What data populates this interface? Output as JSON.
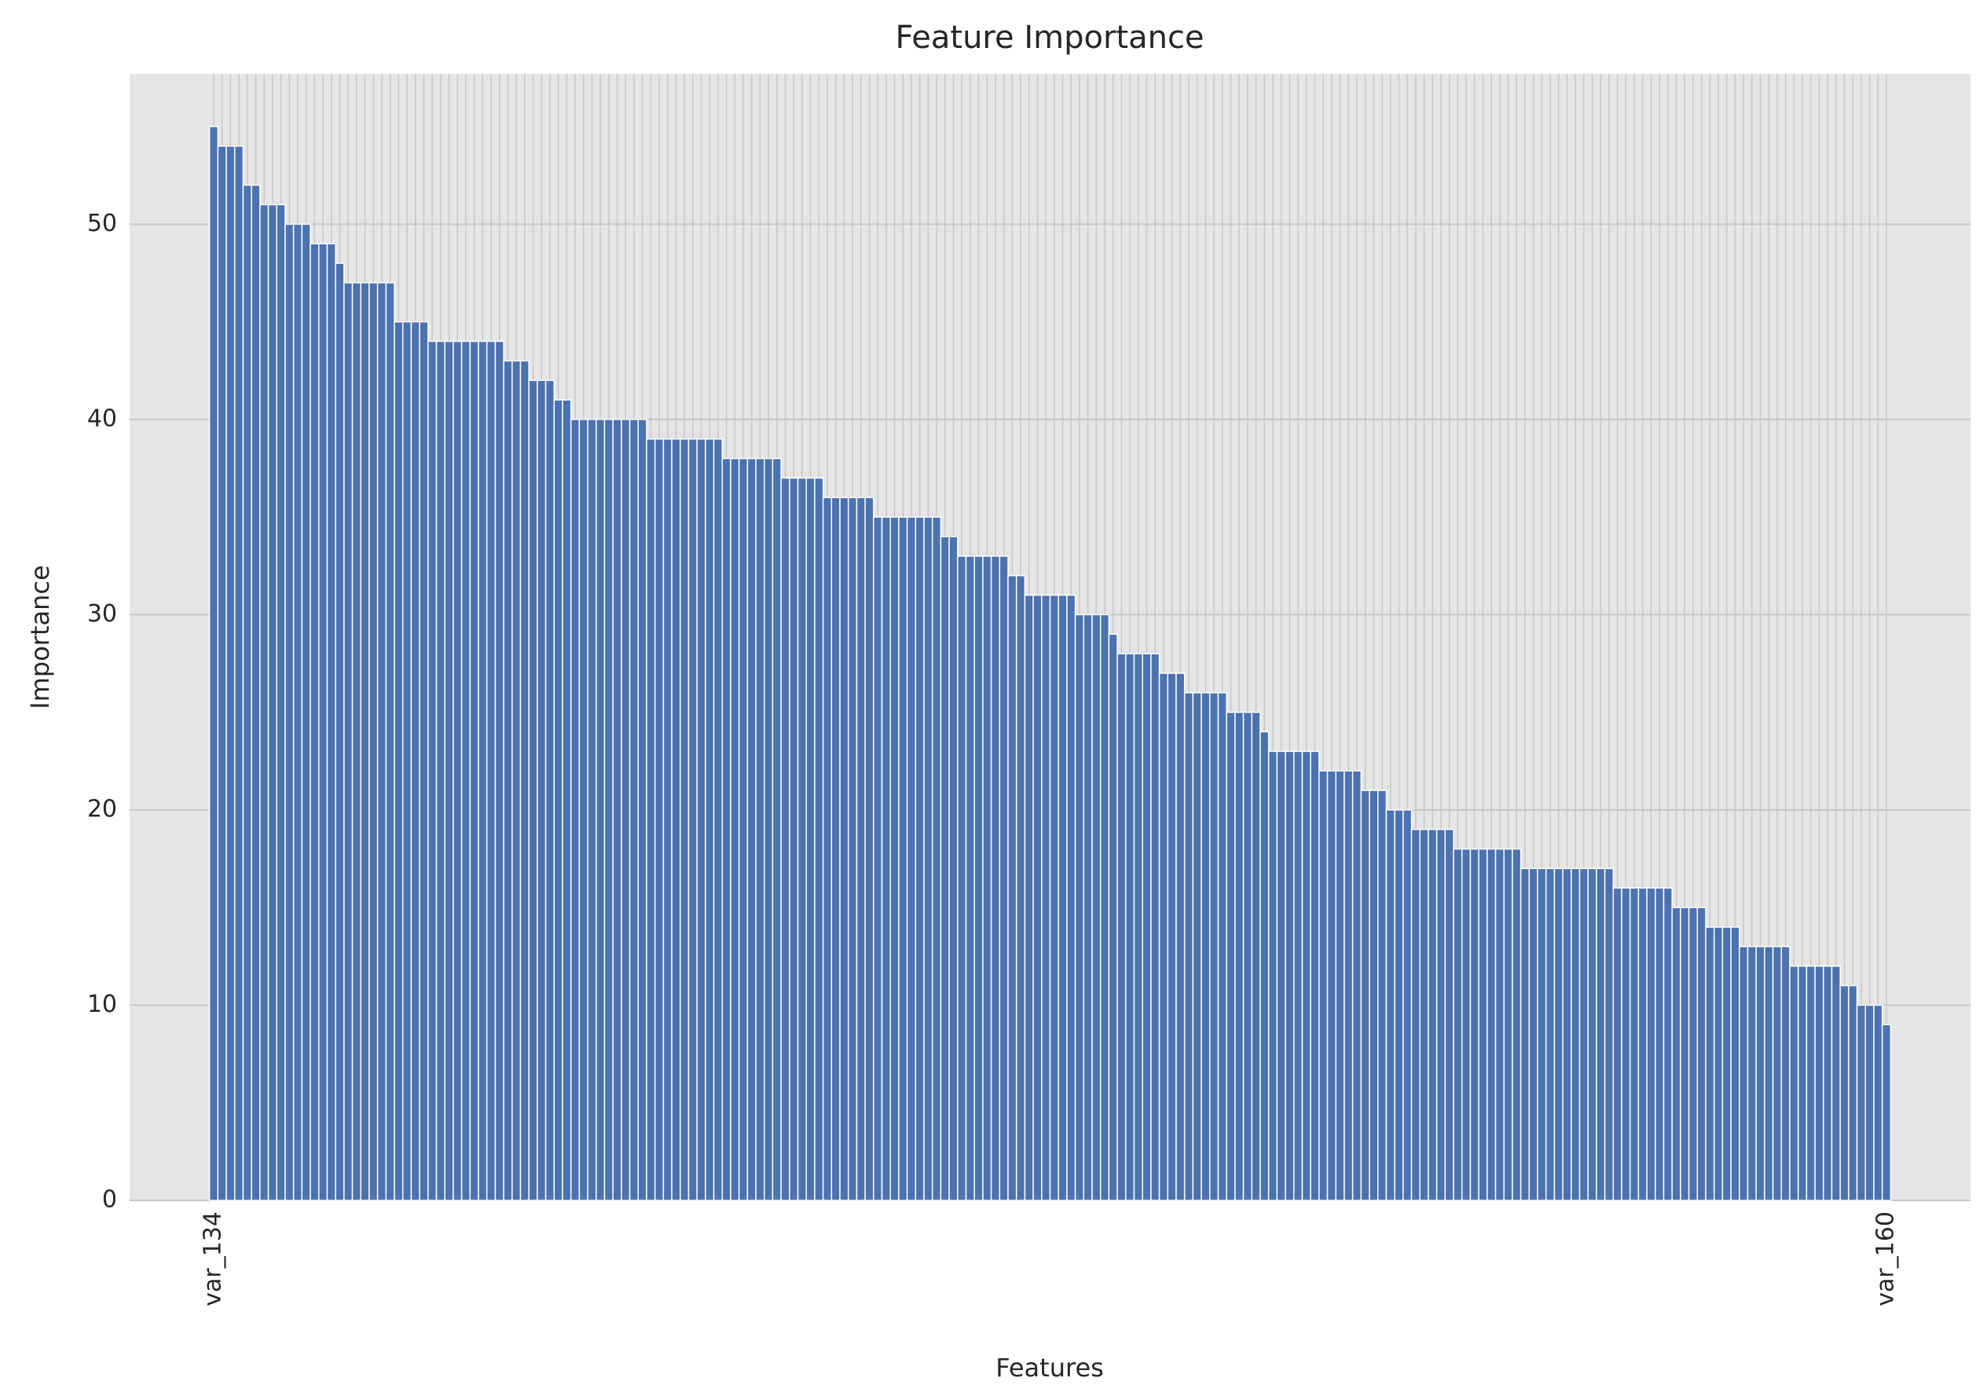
{
  "chart_data": {
    "type": "bar",
    "title": "Feature Importance",
    "x_label": "Features",
    "y_label": "Importance",
    "categories": [
      "var_134",
      null,
      null,
      null,
      null,
      null,
      null,
      null,
      null,
      null,
      null,
      null,
      null,
      null,
      null,
      null,
      null,
      null,
      null,
      null,
      null,
      null,
      null,
      null,
      null,
      null,
      null,
      null,
      null,
      null,
      null,
      null,
      null,
      null,
      null,
      null,
      null,
      null,
      null,
      null,
      null,
      null,
      null,
      null,
      null,
      null,
      null,
      null,
      null,
      null,
      null,
      null,
      null,
      null,
      null,
      null,
      null,
      null,
      null,
      null,
      null,
      null,
      null,
      null,
      null,
      null,
      null,
      null,
      null,
      null,
      null,
      null,
      null,
      null,
      null,
      null,
      null,
      null,
      null,
      null,
      null,
      null,
      null,
      null,
      null,
      null,
      null,
      null,
      null,
      null,
      null,
      null,
      null,
      null,
      null,
      null,
      null,
      null,
      null,
      null,
      null,
      null,
      null,
      null,
      null,
      null,
      null,
      null,
      null,
      null,
      null,
      null,
      null,
      null,
      null,
      null,
      null,
      null,
      null,
      null,
      null,
      null,
      null,
      null,
      null,
      null,
      null,
      null,
      null,
      null,
      null,
      null,
      null,
      null,
      null,
      null,
      null,
      null,
      null,
      null,
      null,
      null,
      null,
      null,
      null,
      null,
      null,
      null,
      null,
      null,
      null,
      null,
      null,
      null,
      null,
      null,
      null,
      null,
      null,
      null,
      null,
      null,
      null,
      null,
      null,
      null,
      null,
      null,
      null,
      null,
      null,
      null,
      null,
      null,
      null,
      null,
      null,
      null,
      null,
      null,
      null,
      null,
      null,
      null,
      null,
      null,
      null,
      null,
      null,
      null,
      null,
      null,
      null,
      null,
      null,
      null,
      null,
      null,
      null,
      "var_160"
    ],
    "values": [
      55,
      54,
      54,
      54,
      52,
      52,
      51,
      51,
      51,
      50,
      50,
      50,
      49,
      49,
      49,
      48,
      47,
      47,
      47,
      47,
      47,
      47,
      45,
      45,
      45,
      45,
      44,
      44,
      44,
      44,
      44,
      44,
      44,
      44,
      44,
      43,
      43,
      43,
      42,
      42,
      42,
      41,
      41,
      40,
      40,
      40,
      40,
      40,
      40,
      40,
      40,
      40,
      39,
      39,
      39,
      39,
      39,
      39,
      39,
      39,
      39,
      38,
      38,
      38,
      38,
      38,
      38,
      38,
      37,
      37,
      37,
      37,
      37,
      36,
      36,
      36,
      36,
      36,
      36,
      35,
      35,
      35,
      35,
      35,
      35,
      35,
      35,
      34,
      34,
      33,
      33,
      33,
      33,
      33,
      33,
      32,
      32,
      31,
      31,
      31,
      31,
      31,
      31,
      30,
      30,
      30,
      30,
      29,
      28,
      28,
      28,
      28,
      28,
      27,
      27,
      27,
      26,
      26,
      26,
      26,
      26,
      25,
      25,
      25,
      25,
      24,
      23,
      23,
      23,
      23,
      23,
      23,
      22,
      22,
      22,
      22,
      22,
      21,
      21,
      21,
      20,
      20,
      20,
      19,
      19,
      19,
      19,
      19,
      18,
      18,
      18,
      18,
      18,
      18,
      18,
      18,
      17,
      17,
      17,
      17,
      17,
      17,
      17,
      17,
      17,
      17,
      17,
      16,
      16,
      16,
      16,
      16,
      16,
      16,
      15,
      15,
      15,
      15,
      14,
      14,
      14,
      14,
      13,
      13,
      13,
      13,
      13,
      13,
      12,
      12,
      12,
      12,
      12,
      12,
      11,
      11,
      10,
      10,
      10,
      9
    ],
    "color": "#4c72b0",
    "ylim": [
      0,
      57.7
    ],
    "yticks": [
      0,
      10,
      20,
      30,
      40,
      50
    ],
    "grid": true
  }
}
